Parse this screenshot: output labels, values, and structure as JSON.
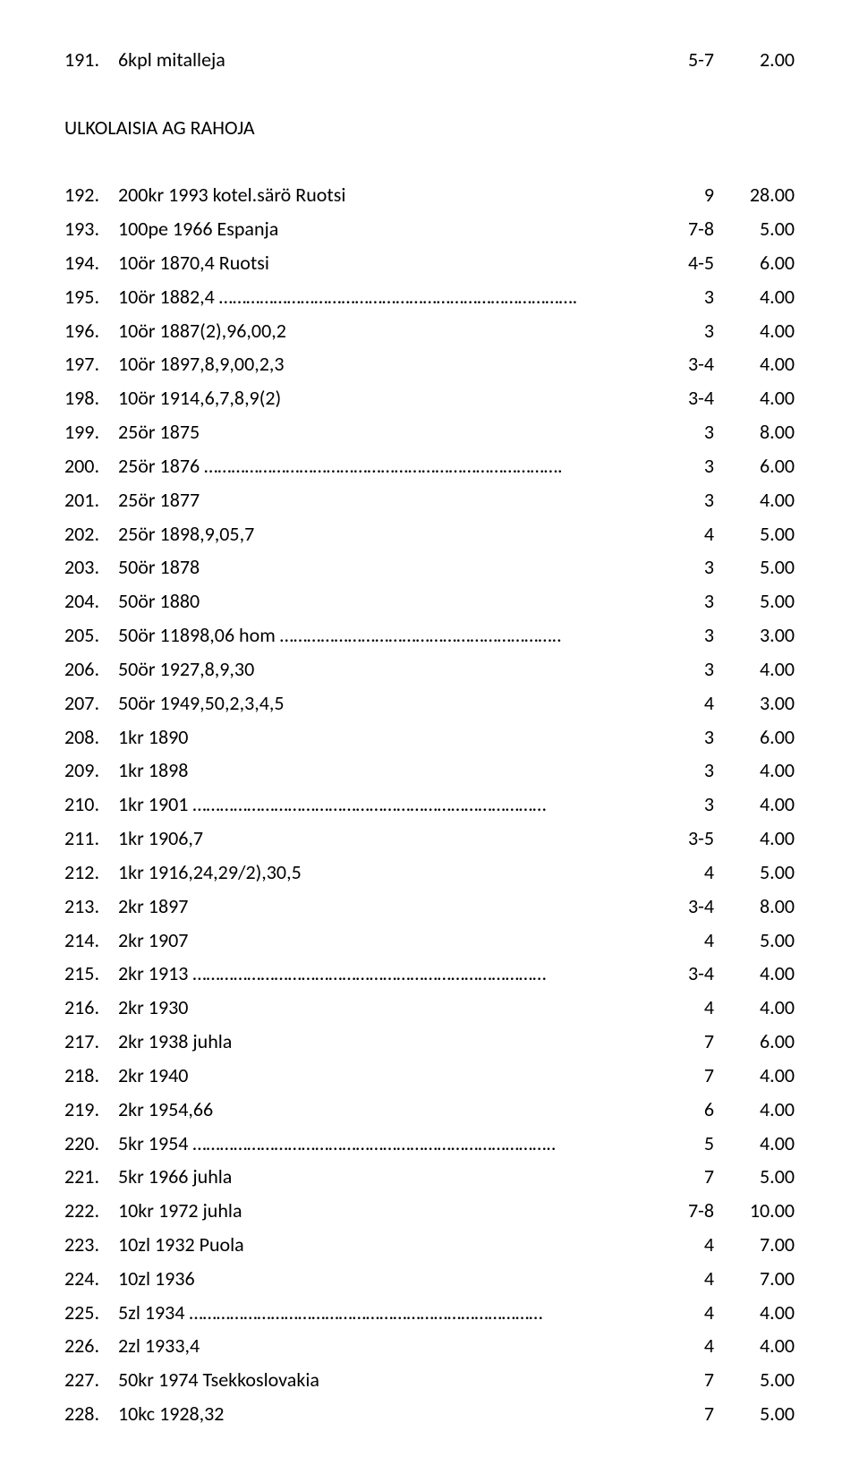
{
  "top": {
    "num": "191.",
    "desc": "6kpl mitalleja",
    "grade": "5-7",
    "price": "2.00"
  },
  "section_title": "ULKOLAISIA AG RAHOJA",
  "rows": [
    {
      "num": "192.",
      "desc": "200kr 1993 kotel.särö Ruotsi",
      "grade": "9",
      "price": "28.00"
    },
    {
      "num": "193.",
      "desc": "100pe 1966 Espanja",
      "grade": "7-8",
      "price": "5.00"
    },
    {
      "num": "194.",
      "desc": "10ör 1870,4 Ruotsi",
      "grade": "4-5",
      "price": "6.00"
    },
    {
      "num": "195.",
      "desc": "10ör 1882,4    …………………………………………………………………….",
      "grade": "3",
      "price": "4.00"
    },
    {
      "num": "196.",
      "desc": "10ör 1887(2),96,00,2",
      "grade": "3",
      "price": "4.00"
    },
    {
      "num": "197.",
      "desc": "10ör 1897,8,9,00,2,3",
      "grade": "3-4",
      "price": "4.00"
    },
    {
      "num": "198.",
      "desc": "10ör 1914,6,7,8,9(2)",
      "grade": "3-4",
      "price": "4.00"
    },
    {
      "num": "199.",
      "desc": "25ör 1875",
      "grade": "3",
      "price": "8.00"
    },
    {
      "num": "200.",
      "desc": "25ör 1876    …………………………………………………………………….",
      "grade": "3",
      "price": "6.00"
    },
    {
      "num": "201.",
      "desc": "25ör 1877",
      "grade": "3",
      "price": "4.00"
    },
    {
      "num": "202.",
      "desc": "25ör 1898,9,05,7",
      "grade": "4",
      "price": "5.00"
    },
    {
      "num": "203.",
      "desc": "50ör 1878",
      "grade": "3",
      "price": "5.00"
    },
    {
      "num": "204.",
      "desc": "50ör 1880",
      "grade": "3",
      "price": "5.00"
    },
    {
      "num": "205.",
      "desc": "50ör 11898,06 hom    ……………………………………………………..",
      "grade": "3",
      "price": "3.00"
    },
    {
      "num": "206.",
      "desc": "50ör 1927,8,9,30",
      "grade": "3",
      "price": "4.00"
    },
    {
      "num": "207.",
      "desc": "50ör 1949,50,2,3,4,5",
      "grade": "4",
      "price": "3.00"
    },
    {
      "num": "208.",
      "desc": "1kr 1890",
      "grade": "3",
      "price": "6.00"
    },
    {
      "num": "209.",
      "desc": "1kr 1898",
      "grade": "3",
      "price": "4.00"
    },
    {
      "num": "210.",
      "desc": "1kr 1901    ……………………………………………………………………",
      "grade": "3",
      "price": "4.00"
    },
    {
      "num": "211.",
      "desc": "1kr 1906,7",
      "grade": "3-5",
      "price": "4.00"
    },
    {
      "num": "212.",
      "desc": "1kr 1916,24,29/2),30,5",
      "grade": "4",
      "price": "5.00"
    },
    {
      "num": "213.",
      "desc": "2kr 1897",
      "grade": "3-4",
      "price": "8.00"
    },
    {
      "num": "214.",
      "desc": "2kr 1907",
      "grade": "4",
      "price": "5.00"
    },
    {
      "num": "215.",
      "desc": "2kr 1913    ……………………………………………………………………",
      "grade": "3-4",
      "price": "4.00"
    },
    {
      "num": "216.",
      "desc": "2kr 1930",
      "grade": "4",
      "price": "4.00"
    },
    {
      "num": "217.",
      "desc": "2kr 1938 juhla",
      "grade": "7",
      "price": "6.00"
    },
    {
      "num": "218.",
      "desc": "2kr 1940",
      "grade": "7",
      "price": "4.00"
    },
    {
      "num": "219.",
      "desc": "2kr 1954,66",
      "grade": "6",
      "price": "4.00"
    },
    {
      "num": "220.",
      "desc": "5kr 1954    ……………………………………………………………………..",
      "grade": "5",
      "price": "4.00"
    },
    {
      "num": "221.",
      "desc": "5kr 1966 juhla",
      "grade": "7",
      "price": "5.00"
    },
    {
      "num": "222.",
      "desc": "10kr 1972 juhla",
      "grade": "7-8",
      "price": "10.00"
    },
    {
      "num": "223.",
      "desc": "10zl 1932 Puola",
      "grade": "4",
      "price": "7.00"
    },
    {
      "num": "224.",
      "desc": "10zl 1936",
      "grade": "4",
      "price": "7.00"
    },
    {
      "num": "225.",
      "desc": "5zl 1934    ……………………………………………………………………",
      "grade": "4",
      "price": "4.00"
    },
    {
      "num": "226.",
      "desc": "2zl 1933,4",
      "grade": "4",
      "price": "4.00"
    },
    {
      "num": "227.",
      "desc": "50kr 1974 Tsekkoslovakia",
      "grade": "7",
      "price": "5.00"
    },
    {
      "num": "228.",
      "desc": "10kc 1928,32",
      "grade": "7",
      "price": "5.00"
    }
  ]
}
